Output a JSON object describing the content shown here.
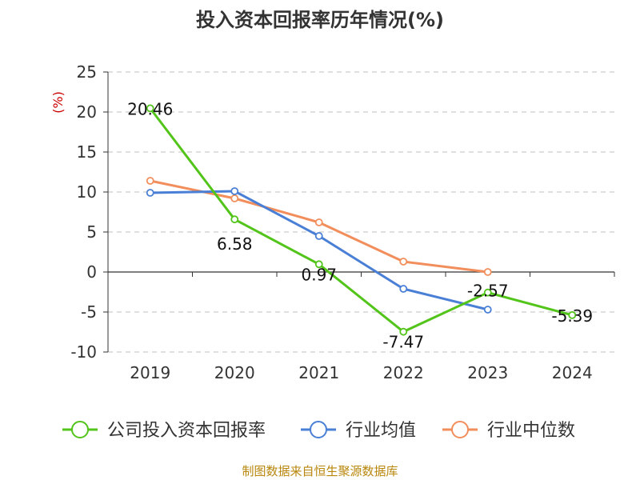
{
  "chart_data": {
    "type": "line",
    "title": "投入资本回报率历年情况(%)",
    "unit_label": "(%)",
    "categories": [
      "2019",
      "2020",
      "2021",
      "2022",
      "2023",
      "2024"
    ],
    "ylim": [
      -10,
      25
    ],
    "yticks": [
      -10,
      -5,
      0,
      5,
      10,
      15,
      20,
      25
    ],
    "grid": true,
    "legend_position": "bottom",
    "series": [
      {
        "name": "公司投入资本回报率",
        "color": "#52c41a",
        "values": [
          20.46,
          6.58,
          0.97,
          -7.47,
          -2.57,
          -5.39
        ],
        "labels": [
          "20.46",
          "6.58",
          "0.97",
          "-7.47",
          "-2.57",
          "-5.39"
        ]
      },
      {
        "name": "行业均值",
        "color": "#4a7fd6",
        "values": [
          9.9,
          10.1,
          4.5,
          -2.1,
          -4.7,
          null
        ]
      },
      {
        "name": "行业中位数",
        "color": "#f28e5b",
        "values": [
          11.4,
          9.2,
          6.2,
          1.3,
          0.0,
          null
        ]
      }
    ]
  },
  "footer": {
    "source": "制图数据来自恒生聚源数据库"
  }
}
